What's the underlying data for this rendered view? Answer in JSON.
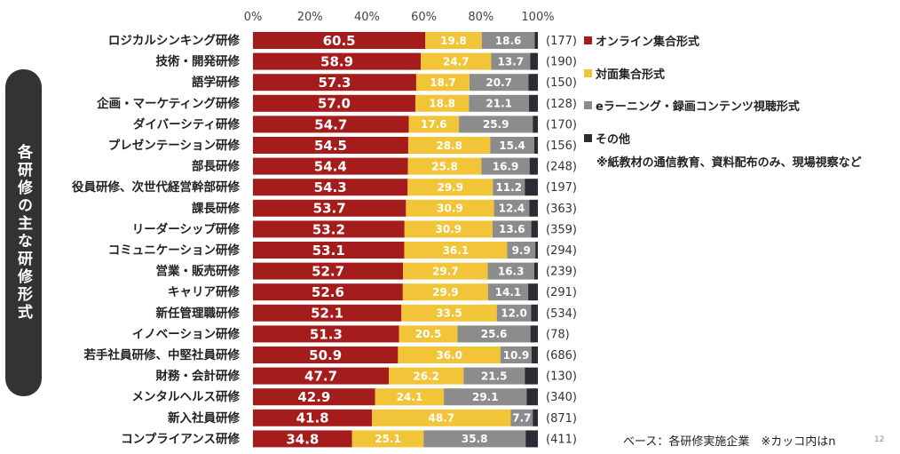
{
  "side_label": "各研修の主な研修形式",
  "legend": [
    {
      "label": "オンライン集合形式",
      "color": "#a51c1c"
    },
    {
      "label": "対面集合形式",
      "color": "#f2c437"
    },
    {
      "label": "eラーニング・録画コンテンツ視聴形式",
      "color": "#8c8c8c"
    },
    {
      "label": "その他",
      "color": "#2b2b33"
    }
  ],
  "legend_note": "※紙教材の通信教育、資料配布のみ、現場視察など",
  "base_note": "ベース：各研修実施企業　※カッコ内はn",
  "page_number": "12",
  "chart_data": {
    "type": "bar",
    "orientation": "horizontal",
    "stacked": true,
    "xlim": [
      0,
      100
    ],
    "x_ticks": [
      "0%",
      "20%",
      "40%",
      "60%",
      "80%",
      "100%"
    ],
    "categories": [
      "ロジカルシンキング研修",
      "技術・開発研修",
      "語学研修",
      "企画・マーケティング研修",
      "ダイバーシティ研修",
      "プレゼンテーション研修",
      "部長研修",
      "役員研修、次世代経営幹部研修",
      "課長研修",
      "リーダーシップ研修",
      "コミュニケーション研修",
      "営業・販売研修",
      "キャリア研修",
      "新任管理職研修",
      "イノベーション研修",
      "若手社員研修、中堅社員研修",
      "財務・会計研修",
      "メンタルヘルス研修",
      "新入社員研修",
      "コンプライアンス研修"
    ],
    "n_labels": [
      "(177)",
      "(190)",
      "(150)",
      "(128)",
      "(170)",
      "(156)",
      "(248)",
      "(197)",
      "(363)",
      "(359)",
      "(294)",
      "(239)",
      "(291)",
      "(534)",
      "(78)",
      "(686)",
      "(130)",
      "(340)",
      "(871)",
      "(411)"
    ],
    "series": [
      {
        "name": "オンライン集合形式",
        "color": "#a51c1c",
        "label_color": "#ffffff",
        "values": [
          60.5,
          58.9,
          57.3,
          57.0,
          54.7,
          54.5,
          54.4,
          54.3,
          53.7,
          53.2,
          53.1,
          52.7,
          52.6,
          52.1,
          51.3,
          50.9,
          47.7,
          42.9,
          41.8,
          34.8
        ]
      },
      {
        "name": "対面集合形式",
        "color": "#f2c437",
        "label_color": "#ffffff",
        "values": [
          19.8,
          24.7,
          18.7,
          18.8,
          17.6,
          28.8,
          25.8,
          29.9,
          30.9,
          30.9,
          36.1,
          29.7,
          29.9,
          33.5,
          20.5,
          36.0,
          26.2,
          24.1,
          48.7,
          25.1
        ]
      },
      {
        "name": "eラーニング・録画コンテンツ視聴形式",
        "color": "#8c8c8c",
        "label_color": "#ffffff",
        "values": [
          18.6,
          13.7,
          20.7,
          21.1,
          25.9,
          15.4,
          16.9,
          11.2,
          12.4,
          13.6,
          9.9,
          16.3,
          14.1,
          12.0,
          25.6,
          10.9,
          21.5,
          29.1,
          7.7,
          35.8
        ]
      },
      {
        "name": "その他",
        "color": "#2b2b33",
        "values": [
          1.1,
          2.7,
          3.3,
          3.1,
          1.8,
          1.3,
          2.9,
          4.6,
          3.0,
          2.3,
          0.9,
          1.3,
          3.4,
          2.4,
          2.6,
          2.2,
          4.6,
          3.9,
          1.8,
          4.3
        ]
      }
    ]
  }
}
